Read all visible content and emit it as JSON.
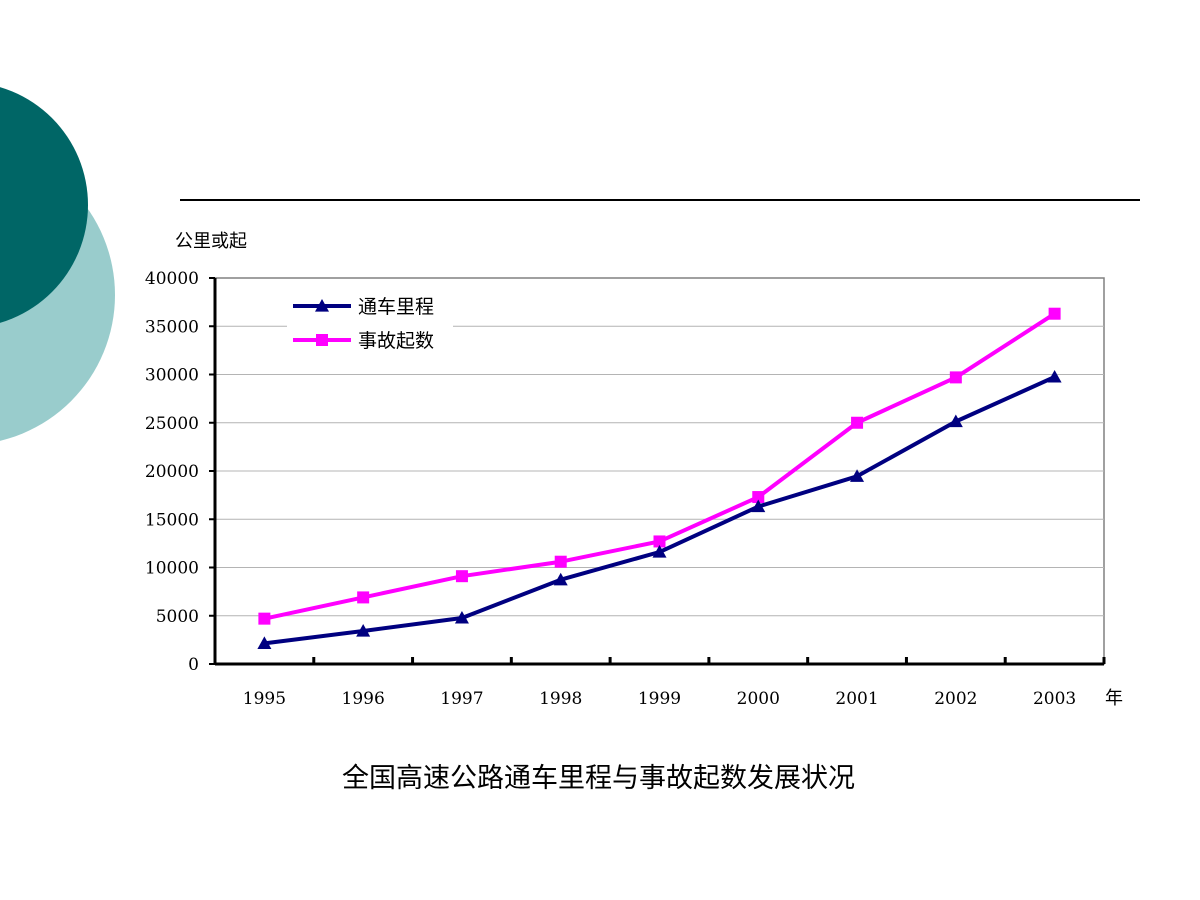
{
  "slide": {
    "caption": "全国高速公路通车里程与事故起数发展状况",
    "decor_colors": {
      "dark_circle": "#006666",
      "light_circle": "#99CCCC",
      "rule": "#000000"
    }
  },
  "chart_data": {
    "type": "line",
    "title": "",
    "ylabel": "公里或起",
    "xlabel": "年",
    "ylim": [
      0,
      40000
    ],
    "yticks": [
      0,
      5000,
      10000,
      15000,
      20000,
      25000,
      30000,
      35000,
      40000
    ],
    "categories": [
      "1995",
      "1996",
      "1997",
      "1998",
      "1999",
      "2000",
      "2001",
      "2002",
      "2003"
    ],
    "grid": true,
    "legend_position": "top-left",
    "series": [
      {
        "name": "通车里程",
        "color": "#000080",
        "marker": "triangle",
        "values": [
          2141,
          3422,
          4771,
          8733,
          11605,
          16314,
          19453,
          25130,
          29745
        ]
      },
      {
        "name": "事故起数",
        "color": "#FF00FF",
        "marker": "square",
        "values": [
          4700,
          6900,
          9100,
          10600,
          12700,
          17300,
          25000,
          29700,
          36300
        ]
      }
    ]
  }
}
